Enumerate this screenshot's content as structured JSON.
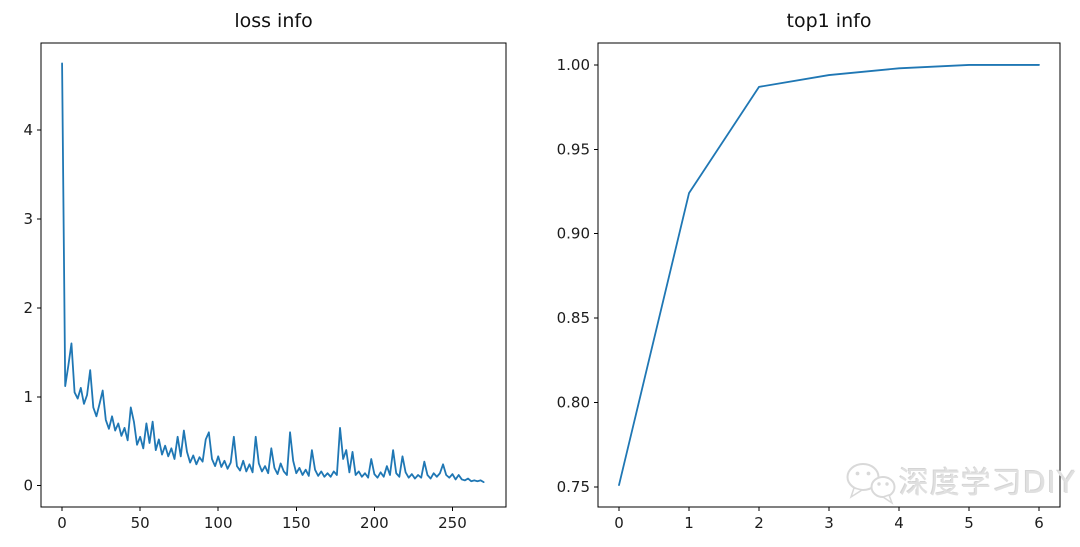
{
  "figure": {
    "background": "#ffffff",
    "line_color": "#1f77b4",
    "axis_color": "#000000",
    "tick_text_color": "#1c1c1c"
  },
  "watermark": {
    "text": "深度学习DIY",
    "icon": "wechat-icon"
  },
  "chart_data": [
    {
      "type": "line",
      "title": "loss info",
      "xlabel": "",
      "ylabel": "",
      "grid": false,
      "legend": null,
      "xlim": [
        -13.5,
        284.3
      ],
      "ylim": [
        -0.24,
        4.98
      ],
      "x_ticks": [
        0,
        50,
        100,
        150,
        200,
        250
      ],
      "x_tick_labels": [
        "0",
        "50",
        "100",
        "150",
        "200",
        "250"
      ],
      "y_ticks": [
        0,
        1,
        2,
        3,
        4
      ],
      "y_tick_labels": [
        "0",
        "1",
        "2",
        "3",
        "4"
      ],
      "series": [
        {
          "name": "loss",
          "x": [
            0,
            2,
            4,
            6,
            8,
            10,
            12,
            14,
            16,
            18,
            20,
            22,
            24,
            26,
            28,
            30,
            32,
            34,
            36,
            38,
            40,
            42,
            44,
            46,
            48,
            50,
            52,
            54,
            56,
            58,
            60,
            62,
            64,
            66,
            68,
            70,
            72,
            74,
            76,
            78,
            80,
            82,
            84,
            86,
            88,
            90,
            92,
            94,
            96,
            98,
            100,
            102,
            104,
            106,
            108,
            110,
            112,
            114,
            116,
            118,
            120,
            122,
            124,
            126,
            128,
            130,
            132,
            134,
            136,
            138,
            140,
            142,
            144,
            146,
            148,
            150,
            152,
            154,
            156,
            158,
            160,
            162,
            164,
            166,
            168,
            170,
            172,
            174,
            176,
            178,
            180,
            182,
            184,
            186,
            188,
            190,
            192,
            194,
            196,
            198,
            200,
            202,
            204,
            206,
            208,
            210,
            212,
            214,
            216,
            218,
            220,
            222,
            224,
            226,
            228,
            230,
            232,
            234,
            236,
            238,
            240,
            242,
            244,
            246,
            248,
            250,
            252,
            254,
            256,
            258,
            260,
            262,
            264,
            266,
            268,
            270
          ],
          "y": [
            4.75,
            1.12,
            1.35,
            1.6,
            1.05,
            0.98,
            1.1,
            0.92,
            1.02,
            1.3,
            0.88,
            0.78,
            0.92,
            1.07,
            0.74,
            0.64,
            0.78,
            0.62,
            0.7,
            0.56,
            0.65,
            0.51,
            0.88,
            0.72,
            0.46,
            0.55,
            0.42,
            0.7,
            0.48,
            0.72,
            0.4,
            0.52,
            0.35,
            0.45,
            0.33,
            0.42,
            0.3,
            0.55,
            0.33,
            0.62,
            0.38,
            0.26,
            0.34,
            0.24,
            0.32,
            0.27,
            0.52,
            0.6,
            0.3,
            0.22,
            0.33,
            0.21,
            0.28,
            0.19,
            0.26,
            0.55,
            0.22,
            0.17,
            0.28,
            0.16,
            0.24,
            0.15,
            0.55,
            0.25,
            0.16,
            0.22,
            0.14,
            0.42,
            0.2,
            0.13,
            0.25,
            0.16,
            0.12,
            0.6,
            0.28,
            0.14,
            0.2,
            0.12,
            0.18,
            0.11,
            0.4,
            0.18,
            0.11,
            0.16,
            0.1,
            0.14,
            0.1,
            0.16,
            0.12,
            0.65,
            0.3,
            0.4,
            0.15,
            0.38,
            0.12,
            0.16,
            0.1,
            0.14,
            0.09,
            0.3,
            0.13,
            0.09,
            0.15,
            0.1,
            0.22,
            0.12,
            0.4,
            0.14,
            0.1,
            0.33,
            0.15,
            0.09,
            0.13,
            0.08,
            0.12,
            0.09,
            0.27,
            0.12,
            0.08,
            0.14,
            0.1,
            0.14,
            0.24,
            0.12,
            0.09,
            0.13,
            0.07,
            0.12,
            0.07,
            0.06,
            0.08,
            0.05,
            0.06,
            0.05,
            0.06,
            0.04
          ]
        }
      ]
    },
    {
      "type": "line",
      "title": "top1 info",
      "xlabel": "",
      "ylabel": "",
      "grid": false,
      "legend": null,
      "xlim": [
        -0.3,
        6.3
      ],
      "ylim": [
        0.738,
        1.013
      ],
      "x_ticks": [
        0,
        1,
        2,
        3,
        4,
        5,
        6
      ],
      "x_tick_labels": [
        "0",
        "1",
        "2",
        "3",
        "4",
        "5",
        "6"
      ],
      "y_ticks": [
        0.75,
        0.8,
        0.85,
        0.9,
        0.95,
        1.0
      ],
      "y_tick_labels": [
        "0.75",
        "0.80",
        "0.85",
        "0.90",
        "0.95",
        "1.00"
      ],
      "series": [
        {
          "name": "top1",
          "x": [
            0,
            1,
            2,
            3,
            4,
            5,
            6
          ],
          "y": [
            0.751,
            0.924,
            0.987,
            0.994,
            0.998,
            1.0,
            1.0
          ]
        }
      ]
    }
  ]
}
